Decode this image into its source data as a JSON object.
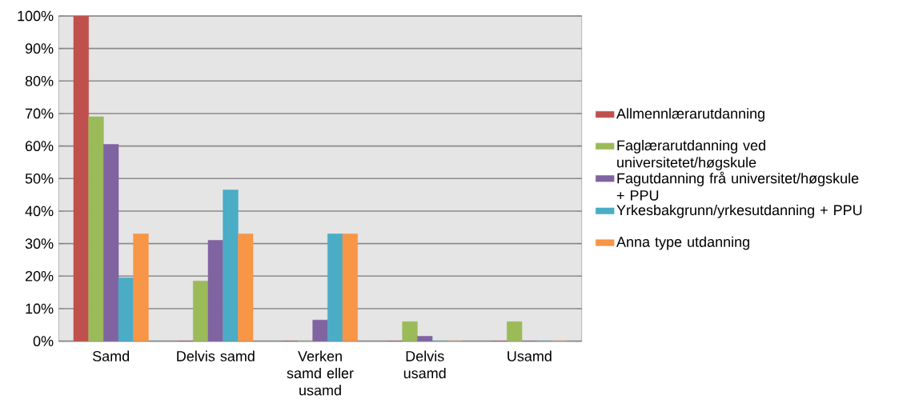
{
  "chart_data": {
    "type": "bar",
    "categories": [
      "Samd",
      "Delvis samd",
      "Verken samd eller usamd",
      "Delvis usamd",
      "Usamd"
    ],
    "series": [
      {
        "name": "Allmennlærarutdanning",
        "color": "#c0504d",
        "values": [
          100,
          0,
          0,
          0,
          0
        ]
      },
      {
        "name": "Faglærarutdanning ved universitetet/høgskule",
        "color": "#9bbb59",
        "values": [
          69,
          18.5,
          0,
          6,
          6
        ]
      },
      {
        "name": "Fagutdanning frå universitet/høgskule + PPU",
        "color": "#8064a2",
        "values": [
          60.5,
          31,
          6.5,
          1.5,
          0
        ]
      },
      {
        "name": "Yrkesbakgrunn/yrkesutdanning + PPU",
        "color": "#4bacc6",
        "values": [
          19.5,
          46.5,
          33,
          0,
          0
        ]
      },
      {
        "name": "Anna type utdanning",
        "color": "#f79646",
        "values": [
          33,
          33,
          33,
          0,
          0
        ]
      }
    ],
    "ylim": [
      0,
      100
    ],
    "yticks": [
      {
        "value": 0,
        "label": "0%"
      },
      {
        "value": 10,
        "label": "10%"
      },
      {
        "value": 20,
        "label": "20%"
      },
      {
        "value": 30,
        "label": "30%"
      },
      {
        "value": 40,
        "label": "40%"
      },
      {
        "value": 50,
        "label": "50%"
      },
      {
        "value": 60,
        "label": "60%"
      },
      {
        "value": 70,
        "label": "70%"
      },
      {
        "value": 80,
        "label": "80%"
      },
      {
        "value": 90,
        "label": "90%"
      },
      {
        "value": 100,
        "label": "100%"
      }
    ],
    "grid": "y",
    "legend": "right"
  }
}
